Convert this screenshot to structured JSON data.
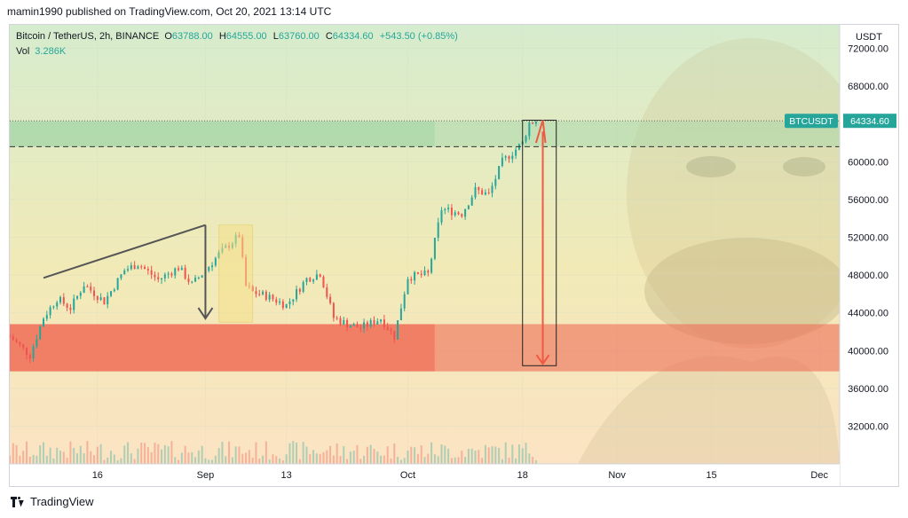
{
  "header": {
    "published": "mamin1990 published on TradingView.com, Oct 20, 2021 13:14 UTC"
  },
  "legend": {
    "symbol": "Bitcoin / TetherUS, 2h, BINANCE",
    "open_label": "O",
    "open": "63788.00",
    "high_label": "H",
    "high": "64555.00",
    "low_label": "L",
    "low": "63760.00",
    "close_label": "C",
    "close": "64334.60",
    "change": "+543.50 (+0.85%)",
    "vol_label": "Vol",
    "vol": "3.286K"
  },
  "price_scale": {
    "unit": "USDT",
    "ticks": [
      "72000.00",
      "68000.00",
      "64000.00",
      "60000.00",
      "56000.00",
      "52000.00",
      "48000.00",
      "44000.00",
      "40000.00",
      "36000.00",
      "32000.00"
    ],
    "last_symbol": "BTCUSDT",
    "last_price": "64334.60"
  },
  "time_axis": {
    "ticks": [
      "16",
      "Sep",
      "13",
      "Oct",
      "18",
      "Nov",
      "15",
      "Dec"
    ]
  },
  "footer": {
    "brand": "TradingView"
  },
  "colors": {
    "up": "#26a69a",
    "down": "#ef5350",
    "green_zone": "#a5d6a7",
    "red_zone": "#ef6c57",
    "arrow": "#f05a43"
  },
  "chart_data": {
    "type": "candlestick",
    "title": "Bitcoin / TetherUS, 2h, BINANCE",
    "ylabel": "USDT",
    "ylim": [
      28000,
      74500
    ],
    "x_range_days": [
      "2021-08-03",
      "2021-12-04"
    ],
    "close_path": [
      {
        "x": "2021-08-03",
        "y": 41500
      },
      {
        "x": "2021-08-06",
        "y": 39500
      },
      {
        "x": "2021-08-08",
        "y": 43500
      },
      {
        "x": "2021-08-10",
        "y": 45500
      },
      {
        "x": "2021-08-12",
        "y": 44500
      },
      {
        "x": "2021-08-14",
        "y": 47000
      },
      {
        "x": "2021-08-17",
        "y": 45200
      },
      {
        "x": "2021-08-20",
        "y": 48500
      },
      {
        "x": "2021-08-22",
        "y": 49200
      },
      {
        "x": "2021-08-25",
        "y": 47500
      },
      {
        "x": "2021-08-28",
        "y": 48800
      },
      {
        "x": "2021-08-30",
        "y": 47000
      },
      {
        "x": "2021-09-01",
        "y": 48500
      },
      {
        "x": "2021-09-03",
        "y": 50200
      },
      {
        "x": "2021-09-06",
        "y": 52200
      },
      {
        "x": "2021-09-07",
        "y": 46800
      },
      {
        "x": "2021-09-08",
        "y": 46200
      },
      {
        "x": "2021-09-10",
        "y": 45800
      },
      {
        "x": "2021-09-13",
        "y": 44800
      },
      {
        "x": "2021-09-16",
        "y": 47600
      },
      {
        "x": "2021-09-18",
        "y": 48200
      },
      {
        "x": "2021-09-20",
        "y": 43500
      },
      {
        "x": "2021-09-22",
        "y": 42800
      },
      {
        "x": "2021-09-24",
        "y": 42400
      },
      {
        "x": "2021-09-27",
        "y": 43400
      },
      {
        "x": "2021-09-29",
        "y": 41500
      },
      {
        "x": "2021-10-01",
        "y": 47800
      },
      {
        "x": "2021-10-04",
        "y": 48100
      },
      {
        "x": "2021-10-06",
        "y": 55000
      },
      {
        "x": "2021-10-09",
        "y": 54500
      },
      {
        "x": "2021-10-11",
        "y": 57000
      },
      {
        "x": "2021-10-13",
        "y": 56500
      },
      {
        "x": "2021-10-15",
        "y": 60000
      },
      {
        "x": "2021-10-17",
        "y": 61300
      },
      {
        "x": "2021-10-18",
        "y": 62000
      },
      {
        "x": "2021-10-19",
        "y": 64100
      },
      {
        "x": "2021-10-20",
        "y": 64334.6
      }
    ],
    "horizontal_lines": [
      64334.6,
      61600
    ],
    "zones": [
      {
        "name": "green zone",
        "from": 61600,
        "to": 64300
      },
      {
        "name": "red zone",
        "from": 37800,
        "to": 42800
      }
    ],
    "annotations": [
      {
        "type": "trendline",
        "from": {
          "x": "2021-08-08",
          "y": 47700
        },
        "to": {
          "x": "2021-09-01",
          "y": 53300
        }
      },
      {
        "type": "arrow",
        "from": {
          "x": "2021-09-01",
          "y": 53300
        },
        "to": {
          "x": "2021-09-01",
          "y": 43400
        }
      },
      {
        "type": "rectangle",
        "x": [
          "2021-09-03",
          "2021-09-08"
        ],
        "y": [
          43000,
          53300
        ]
      },
      {
        "type": "rectangle",
        "x": [
          "2021-10-18",
          "2021-10-23"
        ],
        "y": [
          38400,
          64400
        ]
      },
      {
        "type": "arrow",
        "from": {
          "x": "2021-10-21",
          "y": 63200
        },
        "to": {
          "x": "2021-10-21",
          "y": 38600
        }
      },
      {
        "type": "arrow",
        "from": {
          "x": "2021-10-20",
          "y": 62000
        },
        "to": {
          "x": "2021-10-21",
          "y": 64400
        }
      }
    ]
  }
}
